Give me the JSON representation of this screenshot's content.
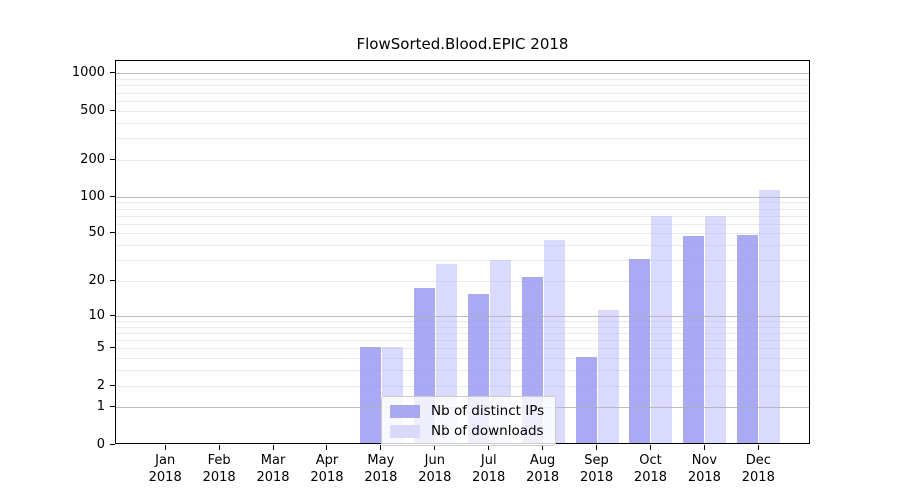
{
  "title": "FlowSorted.Blood.EPIC 2018",
  "chart_data": {
    "type": "bar",
    "title": "FlowSorted.Blood.EPIC 2018",
    "months": [
      "Jan",
      "Feb",
      "Mar",
      "Apr",
      "May",
      "Jun",
      "Jul",
      "Aug",
      "Sep",
      "Oct",
      "Nov",
      "Dec"
    ],
    "year": "2018",
    "series": [
      {
        "name": "Nb of distinct IPs",
        "values": [
          0,
          0,
          0,
          0,
          5,
          17,
          15,
          21,
          4,
          30,
          46,
          47
        ],
        "bar_color": "rgba(150,150,242,0.82)",
        "swatch_color": "#a9a9ef"
      },
      {
        "name": "Nb of downloads",
        "values": [
          0,
          0,
          0,
          0,
          5,
          27,
          29,
          43,
          11,
          67,
          67,
          110
        ],
        "bar_color": "rgba(187,187,255,0.55)",
        "swatch_color": "#d9d9fa"
      }
    ],
    "y_scale": "log1p",
    "y_ticks": [
      1000,
      500,
      200,
      100,
      50,
      20,
      10,
      5,
      2,
      1,
      0
    ],
    "y_max": 1274,
    "grid_major": [
      1,
      10,
      100,
      1000
    ],
    "grid_minor": [
      2,
      3,
      4,
      5,
      6,
      7,
      8,
      9,
      20,
      30,
      40,
      50,
      60,
      70,
      80,
      90,
      200,
      300,
      400,
      500,
      600,
      700,
      800,
      900
    ],
    "legend": {
      "position": "lower center",
      "entries": [
        "Nb of distinct IPs",
        "Nb of downloads"
      ]
    },
    "colors": {
      "grid_major": "#b0b0b0",
      "grid_minor": "#e9e9e9",
      "axis": "#000000",
      "legend_border": "#cccccc"
    }
  }
}
